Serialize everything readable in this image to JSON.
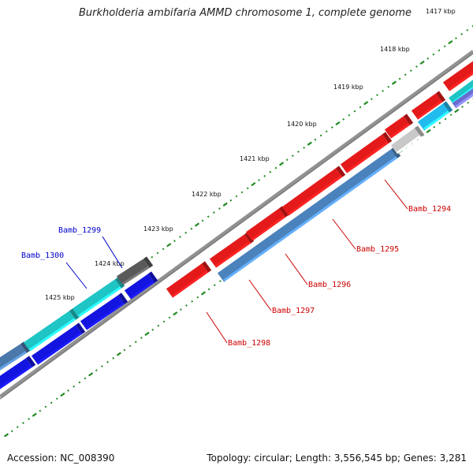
{
  "title": "Burkholderia ambifaria AMMD chromosome 1, complete genome",
  "footer": {
    "accession": "Accession: NC_008390",
    "summary": "Topology: circular; Length: 3,556,545 bp; Genes: 3,281"
  },
  "colors": {
    "backbone": "#7a7a7a",
    "tick": "#1f8a1f",
    "forward_label": "#0000cc",
    "reverse_label": "#cc0000",
    "forward_cds": "#1414e0",
    "forward_teal": "#1fc4c4",
    "forward_dark": "#5a5a5a",
    "forward_steel": "#4a78aa",
    "reverse_cds": "#e41a1a",
    "reverse_steel": "#4a82bb",
    "reverse_light": "#c8c8c8",
    "reverse_cyan": "#22bbee"
  },
  "scale_labels": [
    "1417 kbp",
    "1418 kbp",
    "1419 kbp",
    "1420 kbp",
    "1421 kbp",
    "1422 kbp",
    "1423 kbp",
    "1424 kbp",
    "1425 kbp"
  ],
  "gene_labels": [
    {
      "text": "Bamb_1299",
      "strand": "forward"
    },
    {
      "text": "Bamb_1300",
      "strand": "forward"
    },
    {
      "text": "Bamb_1294",
      "strand": "reverse"
    },
    {
      "text": "Bamb_1295",
      "strand": "reverse"
    },
    {
      "text": "Bamb_1296",
      "strand": "reverse"
    },
    {
      "text": "Bamb_1297",
      "strand": "reverse"
    },
    {
      "text": "Bamb_1298",
      "strand": "reverse"
    }
  ]
}
